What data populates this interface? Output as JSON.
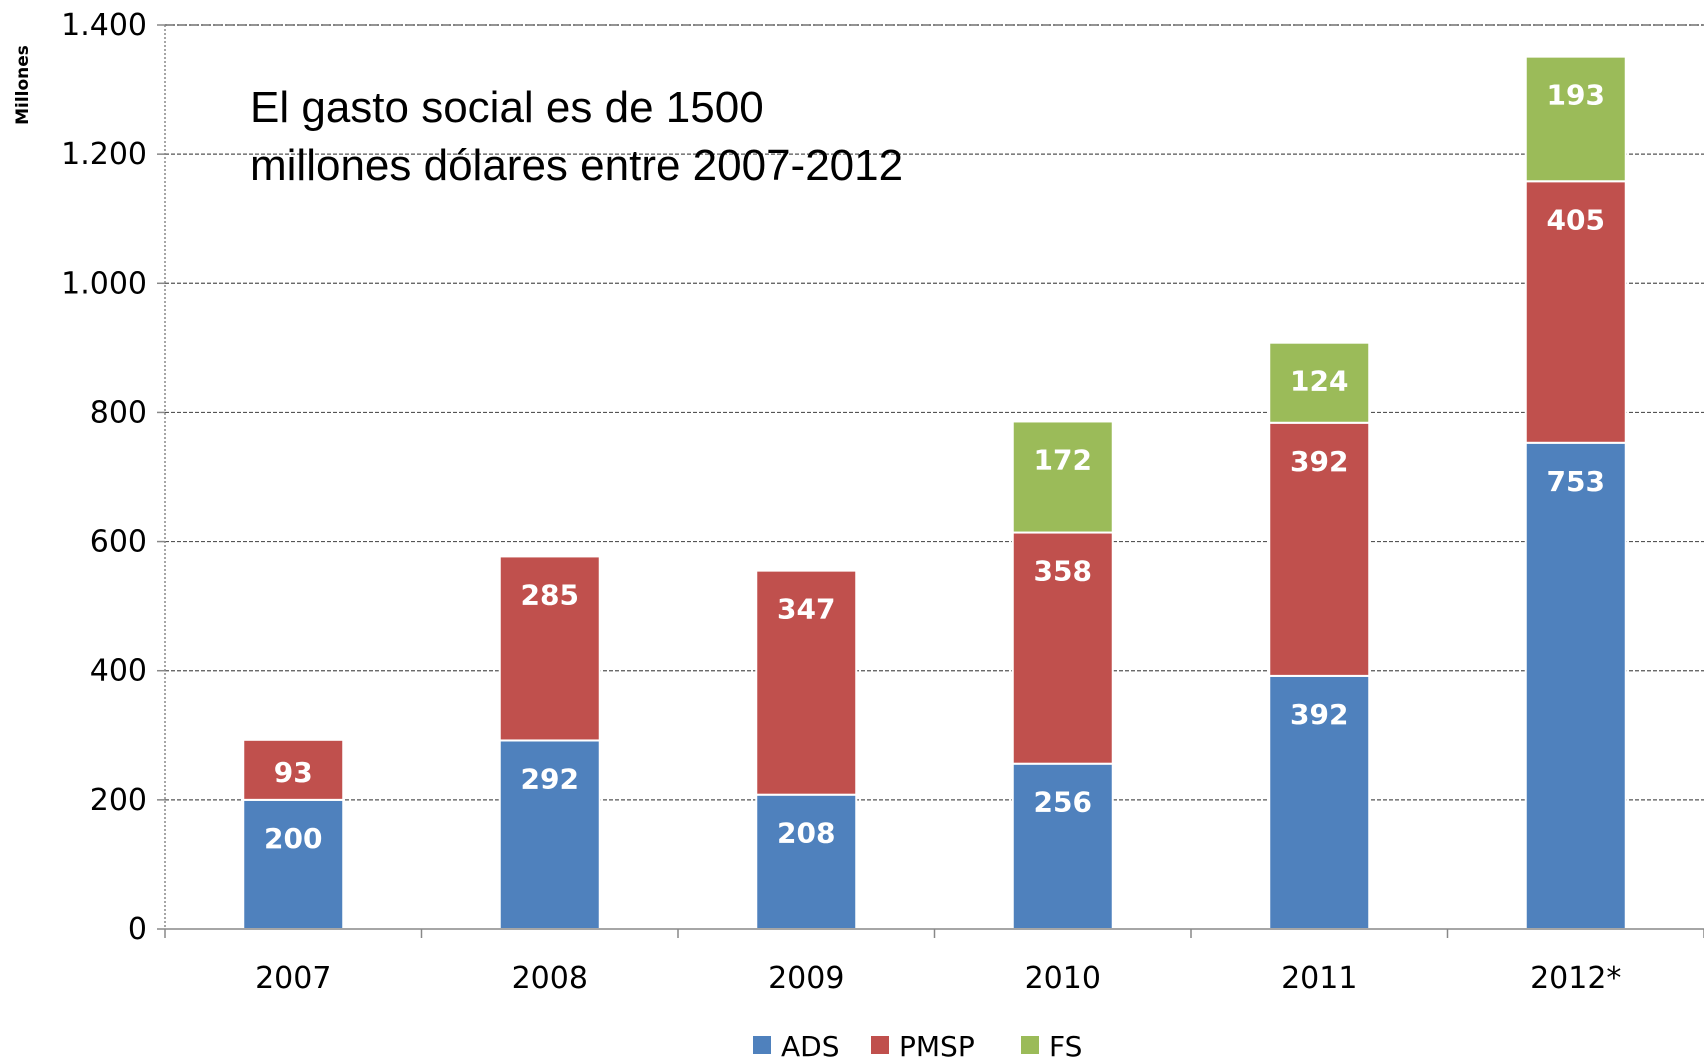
{
  "chart_data": {
    "type": "bar",
    "stacked": true,
    "categories": [
      "2007",
      "2008",
      "2009",
      "2010",
      "2011",
      "2012*"
    ],
    "series": [
      {
        "name": "ADS",
        "color": "#4F81BD",
        "values": [
          200,
          292,
          208,
          256,
          392,
          753
        ]
      },
      {
        "name": "PMSP",
        "color": "#C0504D",
        "values": [
          93,
          285,
          347,
          358,
          392,
          405
        ]
      },
      {
        "name": "FS",
        "color": "#9BBB59",
        "values": [
          null,
          null,
          null,
          172,
          124,
          193
        ]
      }
    ],
    "data_labels": [
      [
        "200",
        "292",
        "208",
        "256",
        "392",
        "753"
      ],
      [
        "93",
        "285",
        "347",
        "358",
        "392",
        "405"
      ],
      [
        "",
        "",
        "",
        "172",
        "124",
        "193"
      ]
    ],
    "ylabel": "Millones",
    "xlabel": "",
    "ylim": [
      0,
      1400
    ],
    "yticks": [
      0,
      200,
      400,
      600,
      800,
      1000,
      1200,
      1400
    ],
    "ytick_labels": [
      "0",
      "200",
      "400",
      "600",
      "800",
      "1.000",
      "1.200",
      "1.400"
    ],
    "grid": true,
    "legend": "bottom",
    "annotation": [
      "El gasto social es de 1500",
      "millones dólares entre 2007-2012"
    ]
  }
}
